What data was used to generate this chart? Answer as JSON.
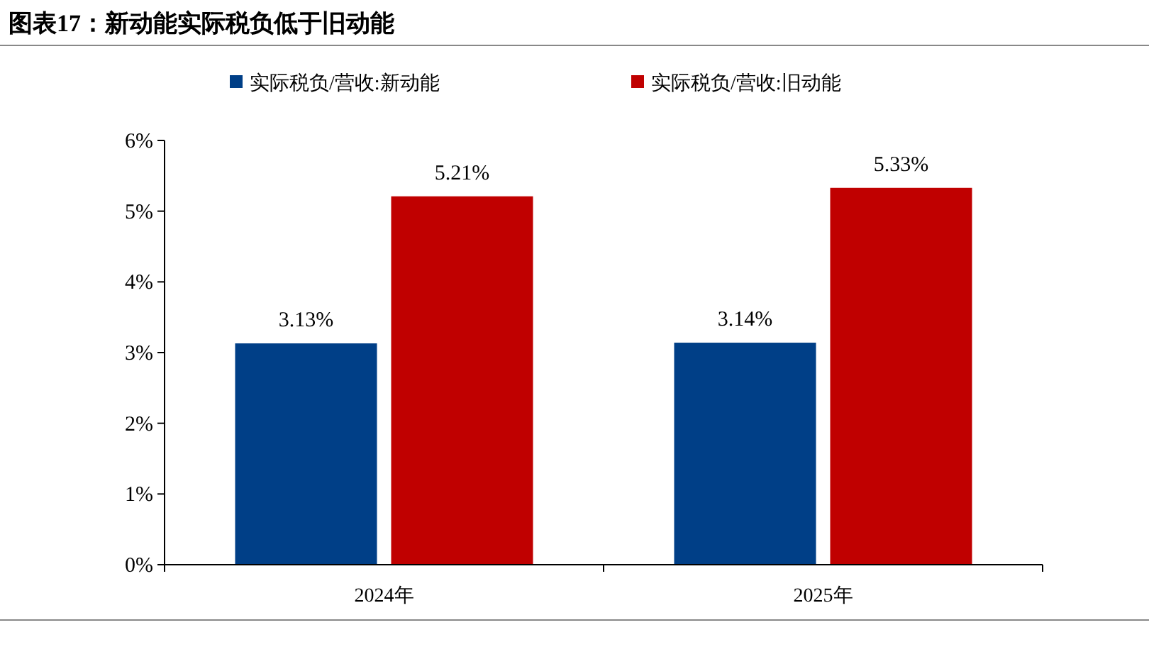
{
  "chart_data": {
    "type": "bar",
    "title": "图表17：新动能实际税负低于旧动能",
    "categories": [
      "2024年",
      "2025年"
    ],
    "series": [
      {
        "name": "实际税负/营收:新动能",
        "color": "#003f87",
        "values": [
          3.13,
          3.14
        ],
        "value_labels": [
          "3.13%",
          "3.14%"
        ]
      },
      {
        "name": "实际税负/营收:旧动能",
        "color": "#c00000",
        "values": [
          5.21,
          5.33
        ],
        "value_labels": [
          "5.21%",
          "5.33%"
        ]
      }
    ],
    "ylim": [
      0,
      6
    ],
    "yticks": [
      {
        "value": 0,
        "label": "0%"
      },
      {
        "value": 1,
        "label": "1%"
      },
      {
        "value": 2,
        "label": "2%"
      },
      {
        "value": 3,
        "label": "3%"
      },
      {
        "value": 4,
        "label": "4%"
      },
      {
        "value": 5,
        "label": "5%"
      },
      {
        "value": 6,
        "label": "6%"
      }
    ],
    "grid": false,
    "legend": "top"
  }
}
